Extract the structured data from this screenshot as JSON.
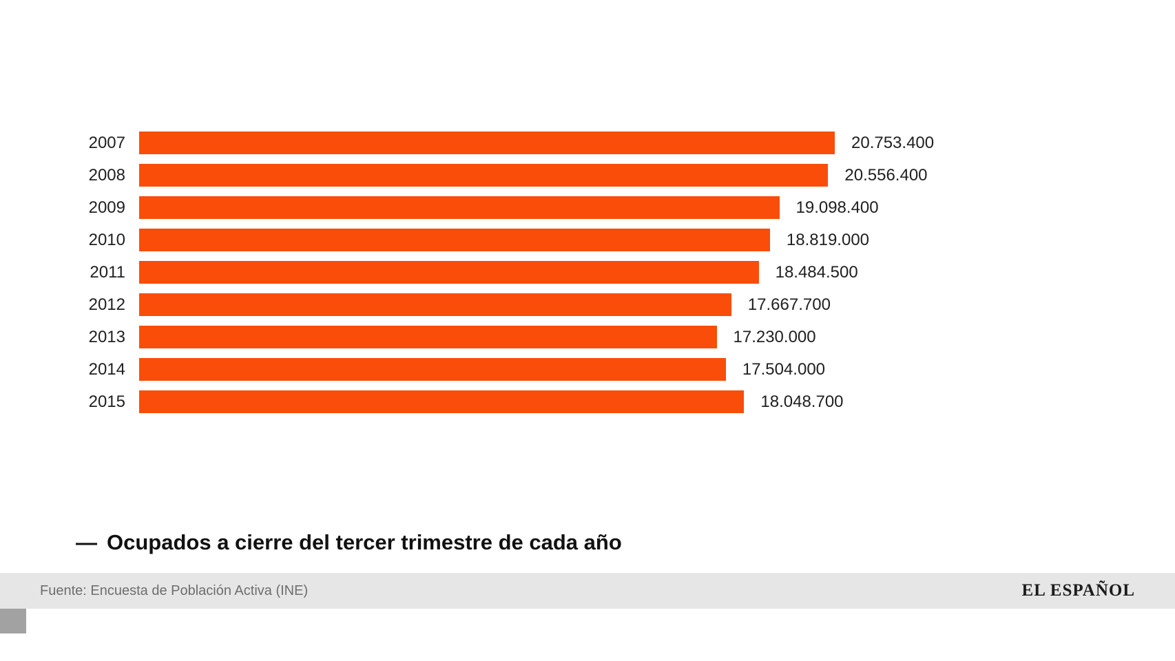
{
  "chart_data": {
    "type": "bar",
    "orientation": "horizontal",
    "title": "",
    "xlabel": "",
    "ylabel": "",
    "categories": [
      "2007",
      "2008",
      "2009",
      "2010",
      "2011",
      "2012",
      "2013",
      "2014",
      "2015"
    ],
    "values": [
      20753400,
      20556400,
      19098400,
      18819000,
      18484500,
      17667700,
      17230000,
      17504000,
      18048700
    ],
    "value_labels": [
      "20.753.400",
      "20.556.400",
      "19.098.400",
      "18.819.000",
      "18.484.500",
      "17.667.700",
      "17.230.000",
      "17.504.000",
      "18.048.700"
    ],
    "xlim": [
      0,
      20753400
    ],
    "grid": false,
    "legend_position": "bottom",
    "bar_color": "#f94d09",
    "legend_entries": [
      "Ocupados a cierre del tercer trimestre de cada año"
    ]
  },
  "legend": {
    "marker": "—",
    "label": "Ocupados a cierre del tercer trimestre de cada año"
  },
  "footer": {
    "source": "Fuente: Encuesta de Población Activa (INE)",
    "brand": "EL ESPAÑOL"
  },
  "colors": {
    "bar": "#f94d09",
    "footer_bg": "#e6e6e6",
    "text": "#1f1f1f",
    "source_text": "#6e6e6e"
  }
}
